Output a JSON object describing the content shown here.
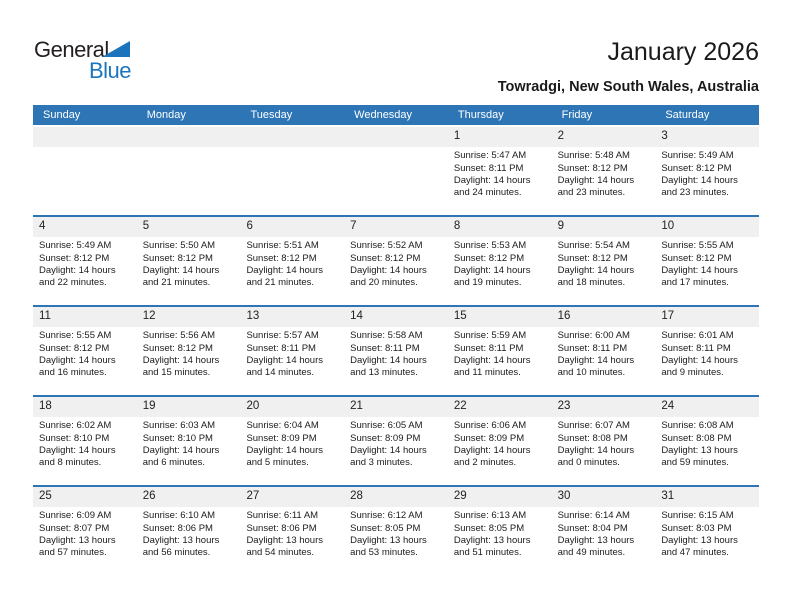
{
  "logo": {
    "part1": "General",
    "part2": "Blue"
  },
  "title": "January 2026",
  "subtitle": "Towradgi, New South Wales, Australia",
  "weekdays": [
    "Sunday",
    "Monday",
    "Tuesday",
    "Wednesday",
    "Thursday",
    "Friday",
    "Saturday"
  ],
  "colors": {
    "header_blue": "#2E75B6",
    "row_border_blue": "#2E75B6",
    "day_strip_gray": "#F0F0F0",
    "logo_blue": "#1C75BC",
    "logo_dark": "#231F20"
  },
  "weeks": [
    [
      null,
      null,
      null,
      null,
      {
        "day": "1",
        "sunrise": "Sunrise: 5:47 AM",
        "sunset": "Sunset: 8:11 PM",
        "daylight": "Daylight: 14 hours and 24 minutes."
      },
      {
        "day": "2",
        "sunrise": "Sunrise: 5:48 AM",
        "sunset": "Sunset: 8:12 PM",
        "daylight": "Daylight: 14 hours and 23 minutes."
      },
      {
        "day": "3",
        "sunrise": "Sunrise: 5:49 AM",
        "sunset": "Sunset: 8:12 PM",
        "daylight": "Daylight: 14 hours and 23 minutes."
      }
    ],
    [
      {
        "day": "4",
        "sunrise": "Sunrise: 5:49 AM",
        "sunset": "Sunset: 8:12 PM",
        "daylight": "Daylight: 14 hours and 22 minutes."
      },
      {
        "day": "5",
        "sunrise": "Sunrise: 5:50 AM",
        "sunset": "Sunset: 8:12 PM",
        "daylight": "Daylight: 14 hours and 21 minutes."
      },
      {
        "day": "6",
        "sunrise": "Sunrise: 5:51 AM",
        "sunset": "Sunset: 8:12 PM",
        "daylight": "Daylight: 14 hours and 21 minutes."
      },
      {
        "day": "7",
        "sunrise": "Sunrise: 5:52 AM",
        "sunset": "Sunset: 8:12 PM",
        "daylight": "Daylight: 14 hours and 20 minutes."
      },
      {
        "day": "8",
        "sunrise": "Sunrise: 5:53 AM",
        "sunset": "Sunset: 8:12 PM",
        "daylight": "Daylight: 14 hours and 19 minutes."
      },
      {
        "day": "9",
        "sunrise": "Sunrise: 5:54 AM",
        "sunset": "Sunset: 8:12 PM",
        "daylight": "Daylight: 14 hours and 18 minutes."
      },
      {
        "day": "10",
        "sunrise": "Sunrise: 5:55 AM",
        "sunset": "Sunset: 8:12 PM",
        "daylight": "Daylight: 14 hours and 17 minutes."
      }
    ],
    [
      {
        "day": "11",
        "sunrise": "Sunrise: 5:55 AM",
        "sunset": "Sunset: 8:12 PM",
        "daylight": "Daylight: 14 hours and 16 minutes."
      },
      {
        "day": "12",
        "sunrise": "Sunrise: 5:56 AM",
        "sunset": "Sunset: 8:12 PM",
        "daylight": "Daylight: 14 hours and 15 minutes."
      },
      {
        "day": "13",
        "sunrise": "Sunrise: 5:57 AM",
        "sunset": "Sunset: 8:11 PM",
        "daylight": "Daylight: 14 hours and 14 minutes."
      },
      {
        "day": "14",
        "sunrise": "Sunrise: 5:58 AM",
        "sunset": "Sunset: 8:11 PM",
        "daylight": "Daylight: 14 hours and 13 minutes."
      },
      {
        "day": "15",
        "sunrise": "Sunrise: 5:59 AM",
        "sunset": "Sunset: 8:11 PM",
        "daylight": "Daylight: 14 hours and 11 minutes."
      },
      {
        "day": "16",
        "sunrise": "Sunrise: 6:00 AM",
        "sunset": "Sunset: 8:11 PM",
        "daylight": "Daylight: 14 hours and 10 minutes."
      },
      {
        "day": "17",
        "sunrise": "Sunrise: 6:01 AM",
        "sunset": "Sunset: 8:11 PM",
        "daylight": "Daylight: 14 hours and 9 minutes."
      }
    ],
    [
      {
        "day": "18",
        "sunrise": "Sunrise: 6:02 AM",
        "sunset": "Sunset: 8:10 PM",
        "daylight": "Daylight: 14 hours and 8 minutes."
      },
      {
        "day": "19",
        "sunrise": "Sunrise: 6:03 AM",
        "sunset": "Sunset: 8:10 PM",
        "daylight": "Daylight: 14 hours and 6 minutes."
      },
      {
        "day": "20",
        "sunrise": "Sunrise: 6:04 AM",
        "sunset": "Sunset: 8:09 PM",
        "daylight": "Daylight: 14 hours and 5 minutes."
      },
      {
        "day": "21",
        "sunrise": "Sunrise: 6:05 AM",
        "sunset": "Sunset: 8:09 PM",
        "daylight": "Daylight: 14 hours and 3 minutes."
      },
      {
        "day": "22",
        "sunrise": "Sunrise: 6:06 AM",
        "sunset": "Sunset: 8:09 PM",
        "daylight": "Daylight: 14 hours and 2 minutes."
      },
      {
        "day": "23",
        "sunrise": "Sunrise: 6:07 AM",
        "sunset": "Sunset: 8:08 PM",
        "daylight": "Daylight: 14 hours and 0 minutes."
      },
      {
        "day": "24",
        "sunrise": "Sunrise: 6:08 AM",
        "sunset": "Sunset: 8:08 PM",
        "daylight": "Daylight: 13 hours and 59 minutes."
      }
    ],
    [
      {
        "day": "25",
        "sunrise": "Sunrise: 6:09 AM",
        "sunset": "Sunset: 8:07 PM",
        "daylight": "Daylight: 13 hours and 57 minutes."
      },
      {
        "day": "26",
        "sunrise": "Sunrise: 6:10 AM",
        "sunset": "Sunset: 8:06 PM",
        "daylight": "Daylight: 13 hours and 56 minutes."
      },
      {
        "day": "27",
        "sunrise": "Sunrise: 6:11 AM",
        "sunset": "Sunset: 8:06 PM",
        "daylight": "Daylight: 13 hours and 54 minutes."
      },
      {
        "day": "28",
        "sunrise": "Sunrise: 6:12 AM",
        "sunset": "Sunset: 8:05 PM",
        "daylight": "Daylight: 13 hours and 53 minutes."
      },
      {
        "day": "29",
        "sunrise": "Sunrise: 6:13 AM",
        "sunset": "Sunset: 8:05 PM",
        "daylight": "Daylight: 13 hours and 51 minutes."
      },
      {
        "day": "30",
        "sunrise": "Sunrise: 6:14 AM",
        "sunset": "Sunset: 8:04 PM",
        "daylight": "Daylight: 13 hours and 49 minutes."
      },
      {
        "day": "31",
        "sunrise": "Sunrise: 6:15 AM",
        "sunset": "Sunset: 8:03 PM",
        "daylight": "Daylight: 13 hours and 47 minutes."
      }
    ]
  ]
}
